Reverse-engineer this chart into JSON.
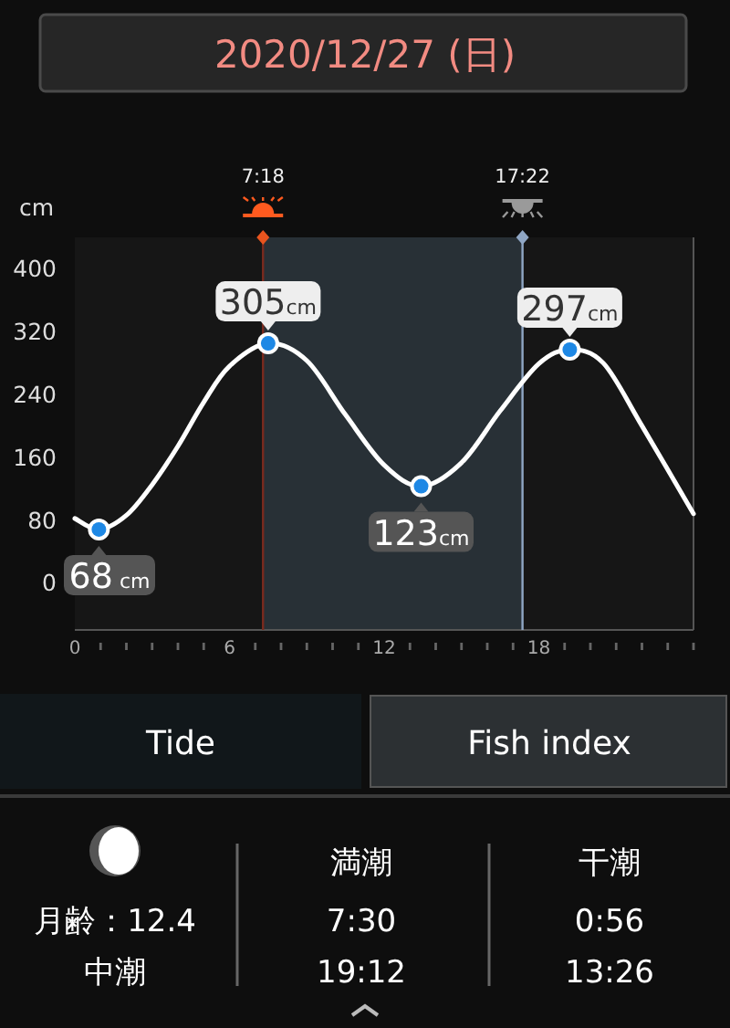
{
  "chart_data": {
    "type": "line",
    "title": "2020/12/27 (日)",
    "ylabel": "cm",
    "xlim": [
      0,
      24
    ],
    "ylim": [
      -60,
      440
    ],
    "xticks": [
      0,
      {
        "value": 1,
        "label": null
      },
      {
        "value": 2,
        "label": null
      },
      {
        "value": 3,
        "label": null
      },
      {
        "value": 4,
        "label": null
      },
      {
        "value": 5,
        "label": null
      },
      6,
      {
        "value": 7,
        "label": null
      },
      {
        "value": 8,
        "label": null
      },
      {
        "value": 9,
        "label": null
      },
      {
        "value": 10,
        "label": null
      },
      {
        "value": 11,
        "label": null
      },
      12,
      {
        "value": 13,
        "label": null
      },
      {
        "value": 14,
        "label": null
      },
      {
        "value": 15,
        "label": null
      },
      {
        "value": 16,
        "label": null
      },
      {
        "value": 17,
        "label": null
      },
      18,
      {
        "value": 19,
        "label": null
      },
      {
        "value": 20,
        "label": null
      },
      {
        "value": 21,
        "label": null
      },
      {
        "value": 22,
        "label": null
      },
      {
        "value": 23,
        "label": null
      },
      {
        "value": 24,
        "label": null
      }
    ],
    "yticks": [
      0,
      80,
      160,
      240,
      320,
      400
    ],
    "grid": false,
    "bands": [
      {
        "axis": "x",
        "from": 7.3,
        "to": 17.3667,
        "color": "#283036"
      }
    ],
    "ref_lines": [
      {
        "axis": "x",
        "value": 7.3,
        "label": "7:18",
        "color": "#7a2a1e"
      },
      {
        "axis": "x",
        "value": 17.3667,
        "label": "17:22",
        "color": "#8fa6c4"
      }
    ],
    "series": [
      {
        "color": "#ffffff",
        "marker": "none",
        "x": [
          0,
          0.9333,
          2,
          3,
          4,
          5,
          6,
          7.5,
          9,
          10.5,
          12,
          13.4333,
          15,
          16.5,
          18,
          19.2,
          20.5,
          22,
          24
        ],
        "values": [
          82,
          68,
          86,
          125,
          174,
          230,
          276,
          305,
          283,
          214,
          150,
          123,
          153,
          219,
          279,
          297,
          280,
          200,
          88
        ]
      },
      {
        "type": "scatter",
        "color": "#1e88e5",
        "marker": "circle",
        "x": [
          0.9333,
          7.5,
          13.4333,
          19.2
        ],
        "values": [
          68,
          305,
          123,
          297
        ],
        "value_labels": [
          "68 cm",
          "305cm",
          "123cm",
          "297cm"
        ]
      }
    ],
    "annotations": [
      "Tide",
      "Fish index",
      "月齢：12.4",
      "中潮",
      "満潮",
      "7:30",
      "19:12",
      "干潮",
      "0:56",
      "13:26"
    ]
  }
}
